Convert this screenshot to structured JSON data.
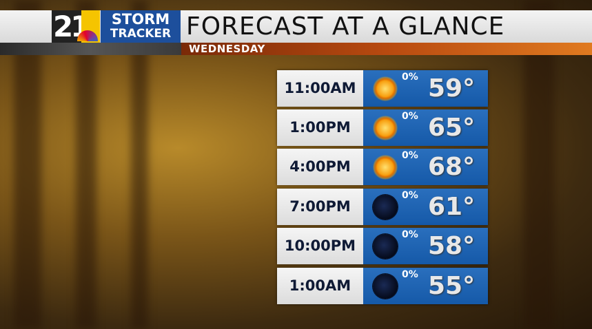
{
  "brand": {
    "channel": "21",
    "name_line1": "STORM",
    "name_line2": "TRACKER"
  },
  "header": {
    "title": "FORECAST AT A GLANCE",
    "day": "WEDNESDAY"
  },
  "rows": [
    {
      "time": "11:00AM",
      "icon": "sun-icon",
      "precip": "0%",
      "temp": "59°"
    },
    {
      "time": "1:00PM",
      "icon": "sun-icon",
      "precip": "0%",
      "temp": "65°"
    },
    {
      "time": "4:00PM",
      "icon": "sun-icon",
      "precip": "0%",
      "temp": "68°"
    },
    {
      "time": "7:00PM",
      "icon": "night-sky-icon",
      "precip": "0%",
      "temp": "61°"
    },
    {
      "time": "10:00PM",
      "icon": "night-sky-icon",
      "precip": "0%",
      "temp": "58°"
    },
    {
      "time": "1:00AM",
      "icon": "night-sky-icon",
      "precip": "0%",
      "temp": "55°"
    }
  ],
  "colors": {
    "panel_blue": "#1d5ea8",
    "logo_blue": "#1d4f9c",
    "day_bar": "#b84a10",
    "logo_yellow": "#f5c400"
  }
}
